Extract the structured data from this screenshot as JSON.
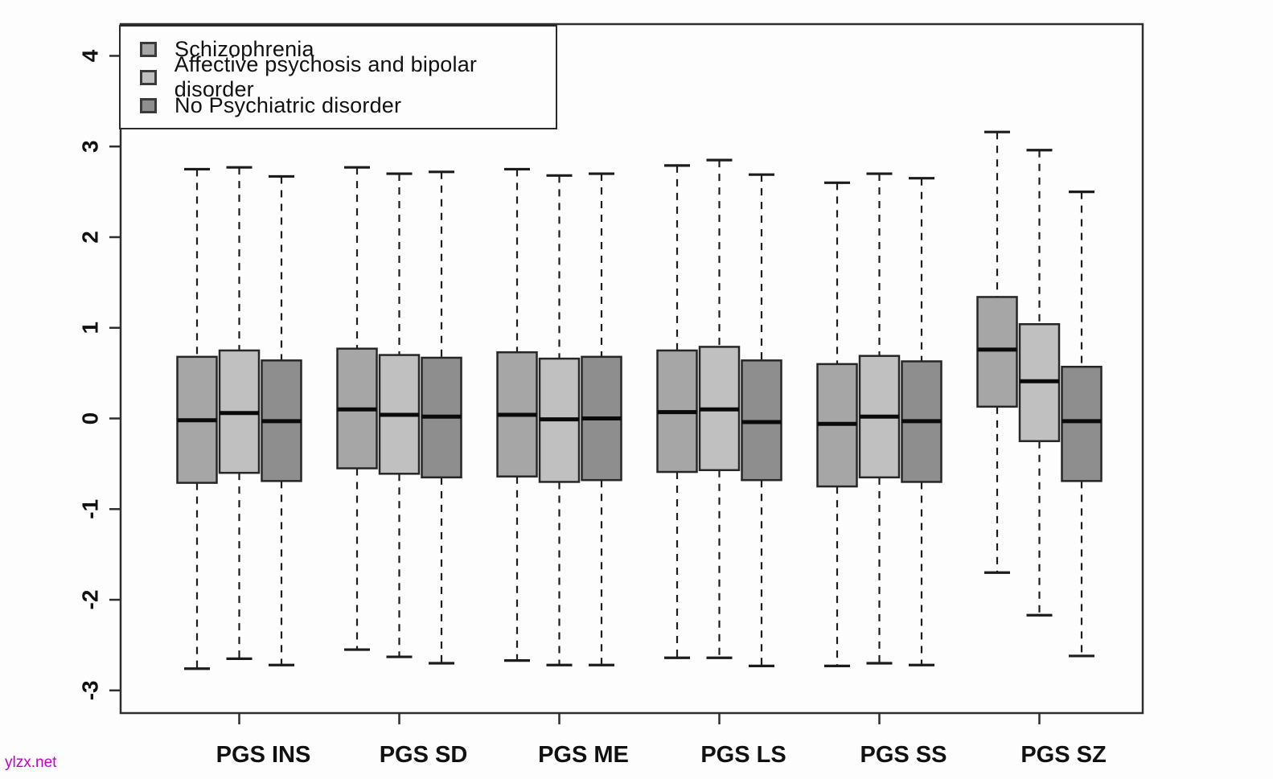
{
  "watermark": "ylzx.net",
  "colors": {
    "background": "#fdfdfd",
    "frame": "#2e2e2e",
    "axis_text": "#111111",
    "box_border": "#262626",
    "median": "#0a0a0a",
    "whisker": "#1c1c1c",
    "watermark": "#c400c8"
  },
  "chart_data": {
    "type": "boxplot",
    "title": "",
    "xlabel": "",
    "ylabel": "",
    "grid": false,
    "legend_position": "top-left",
    "categories": [
      "PGS INS",
      "PGS SD",
      "PGS ME",
      "PGS LS",
      "PGS SS",
      "PGS SZ"
    ],
    "yticks": [
      -3,
      -2,
      -1,
      0,
      1,
      2,
      3,
      4
    ],
    "ylim": [
      -3.25,
      4.35
    ],
    "series": [
      {
        "name": "Schizophrenia",
        "color": "#a6a6a6",
        "boxes": [
          {
            "low": -2.76,
            "q1": -0.71,
            "median": -0.02,
            "q3": 0.68,
            "high": 2.75
          },
          {
            "low": -2.55,
            "q1": -0.55,
            "median": 0.1,
            "q3": 0.77,
            "high": 2.77
          },
          {
            "low": -2.67,
            "q1": -0.64,
            "median": 0.04,
            "q3": 0.73,
            "high": 2.75
          },
          {
            "low": -2.64,
            "q1": -0.59,
            "median": 0.07,
            "q3": 0.75,
            "high": 2.79
          },
          {
            "low": -2.73,
            "q1": -0.75,
            "median": -0.06,
            "q3": 0.6,
            "high": 2.6
          },
          {
            "low": -1.7,
            "q1": 0.13,
            "median": 0.76,
            "q3": 1.34,
            "high": 3.16
          }
        ]
      },
      {
        "name": "Affective psychosis and bipolar disorder",
        "color": "#c0c0c0",
        "boxes": [
          {
            "low": -2.65,
            "q1": -0.6,
            "median": 0.06,
            "q3": 0.75,
            "high": 2.77
          },
          {
            "low": -2.63,
            "q1": -0.61,
            "median": 0.04,
            "q3": 0.7,
            "high": 2.7
          },
          {
            "low": -2.72,
            "q1": -0.7,
            "median": -0.01,
            "q3": 0.66,
            "high": 2.68
          },
          {
            "low": -2.64,
            "q1": -0.57,
            "median": 0.1,
            "q3": 0.79,
            "high": 2.85
          },
          {
            "low": -2.7,
            "q1": -0.65,
            "median": 0.02,
            "q3": 0.69,
            "high": 2.7
          },
          {
            "low": -2.17,
            "q1": -0.25,
            "median": 0.41,
            "q3": 1.04,
            "high": 2.96
          }
        ]
      },
      {
        "name": "No Psychiatric disorder",
        "color": "#8e8e8e",
        "boxes": [
          {
            "low": -2.72,
            "q1": -0.69,
            "median": -0.03,
            "q3": 0.64,
            "high": 2.67
          },
          {
            "low": -2.7,
            "q1": -0.65,
            "median": 0.02,
            "q3": 0.67,
            "high": 2.72
          },
          {
            "low": -2.72,
            "q1": -0.68,
            "median": 0.0,
            "q3": 0.68,
            "high": 2.7
          },
          {
            "low": -2.73,
            "q1": -0.68,
            "median": -0.04,
            "q3": 0.64,
            "high": 2.69
          },
          {
            "low": -2.72,
            "q1": -0.7,
            "median": -0.03,
            "q3": 0.63,
            "high": 2.65
          },
          {
            "low": -2.62,
            "q1": -0.69,
            "median": -0.03,
            "q3": 0.57,
            "high": 2.5
          }
        ]
      }
    ]
  }
}
